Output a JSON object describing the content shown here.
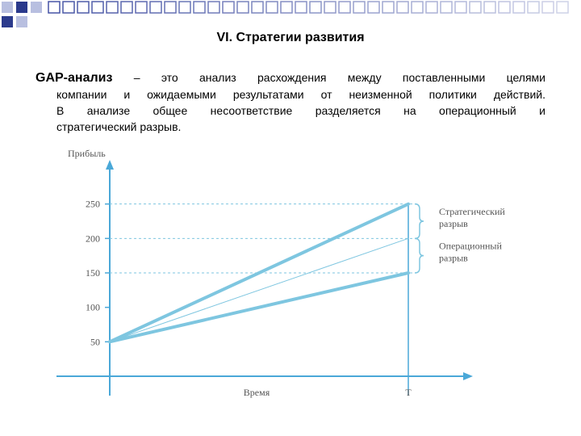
{
  "slide": {
    "title": "VI. Стратегии развития",
    "term": "GAP-анализ",
    "dash": "–",
    "lines": [
      "это анализ расхождения между поставленными целями",
      "компании и ожидаемыми результатами от неизменной политики действий.",
      "В анализе общее несоответствие разделяется на операционный и",
      "стратегический разрыв."
    ]
  },
  "colors": {
    "line": "#7ec6e0",
    "axis": "#4aa8d8",
    "dashed": "#7ec6e0",
    "grid_text": "#555555",
    "deco_dark": "#2b3a8c",
    "deco_light": "#b8bfe0"
  },
  "chart_data": {
    "type": "line",
    "ylabel": "Прибыль",
    "xlabel": "Время",
    "x_tick": "T",
    "yticks": [
      50,
      100,
      150,
      200,
      250
    ],
    "ylim": [
      0,
      300
    ],
    "start": 50,
    "series": [
      {
        "values": [
          50,
          250
        ]
      },
      {
        "values": [
          50,
          200
        ]
      },
      {
        "values": [
          50,
          150
        ]
      }
    ],
    "annotations": [
      {
        "label_lines": [
          "Стратегический",
          "разрыв"
        ],
        "from": 200,
        "to": 250
      },
      {
        "label_lines": [
          "Операционный",
          "разрыв"
        ],
        "from": 150,
        "to": 200
      }
    ]
  }
}
